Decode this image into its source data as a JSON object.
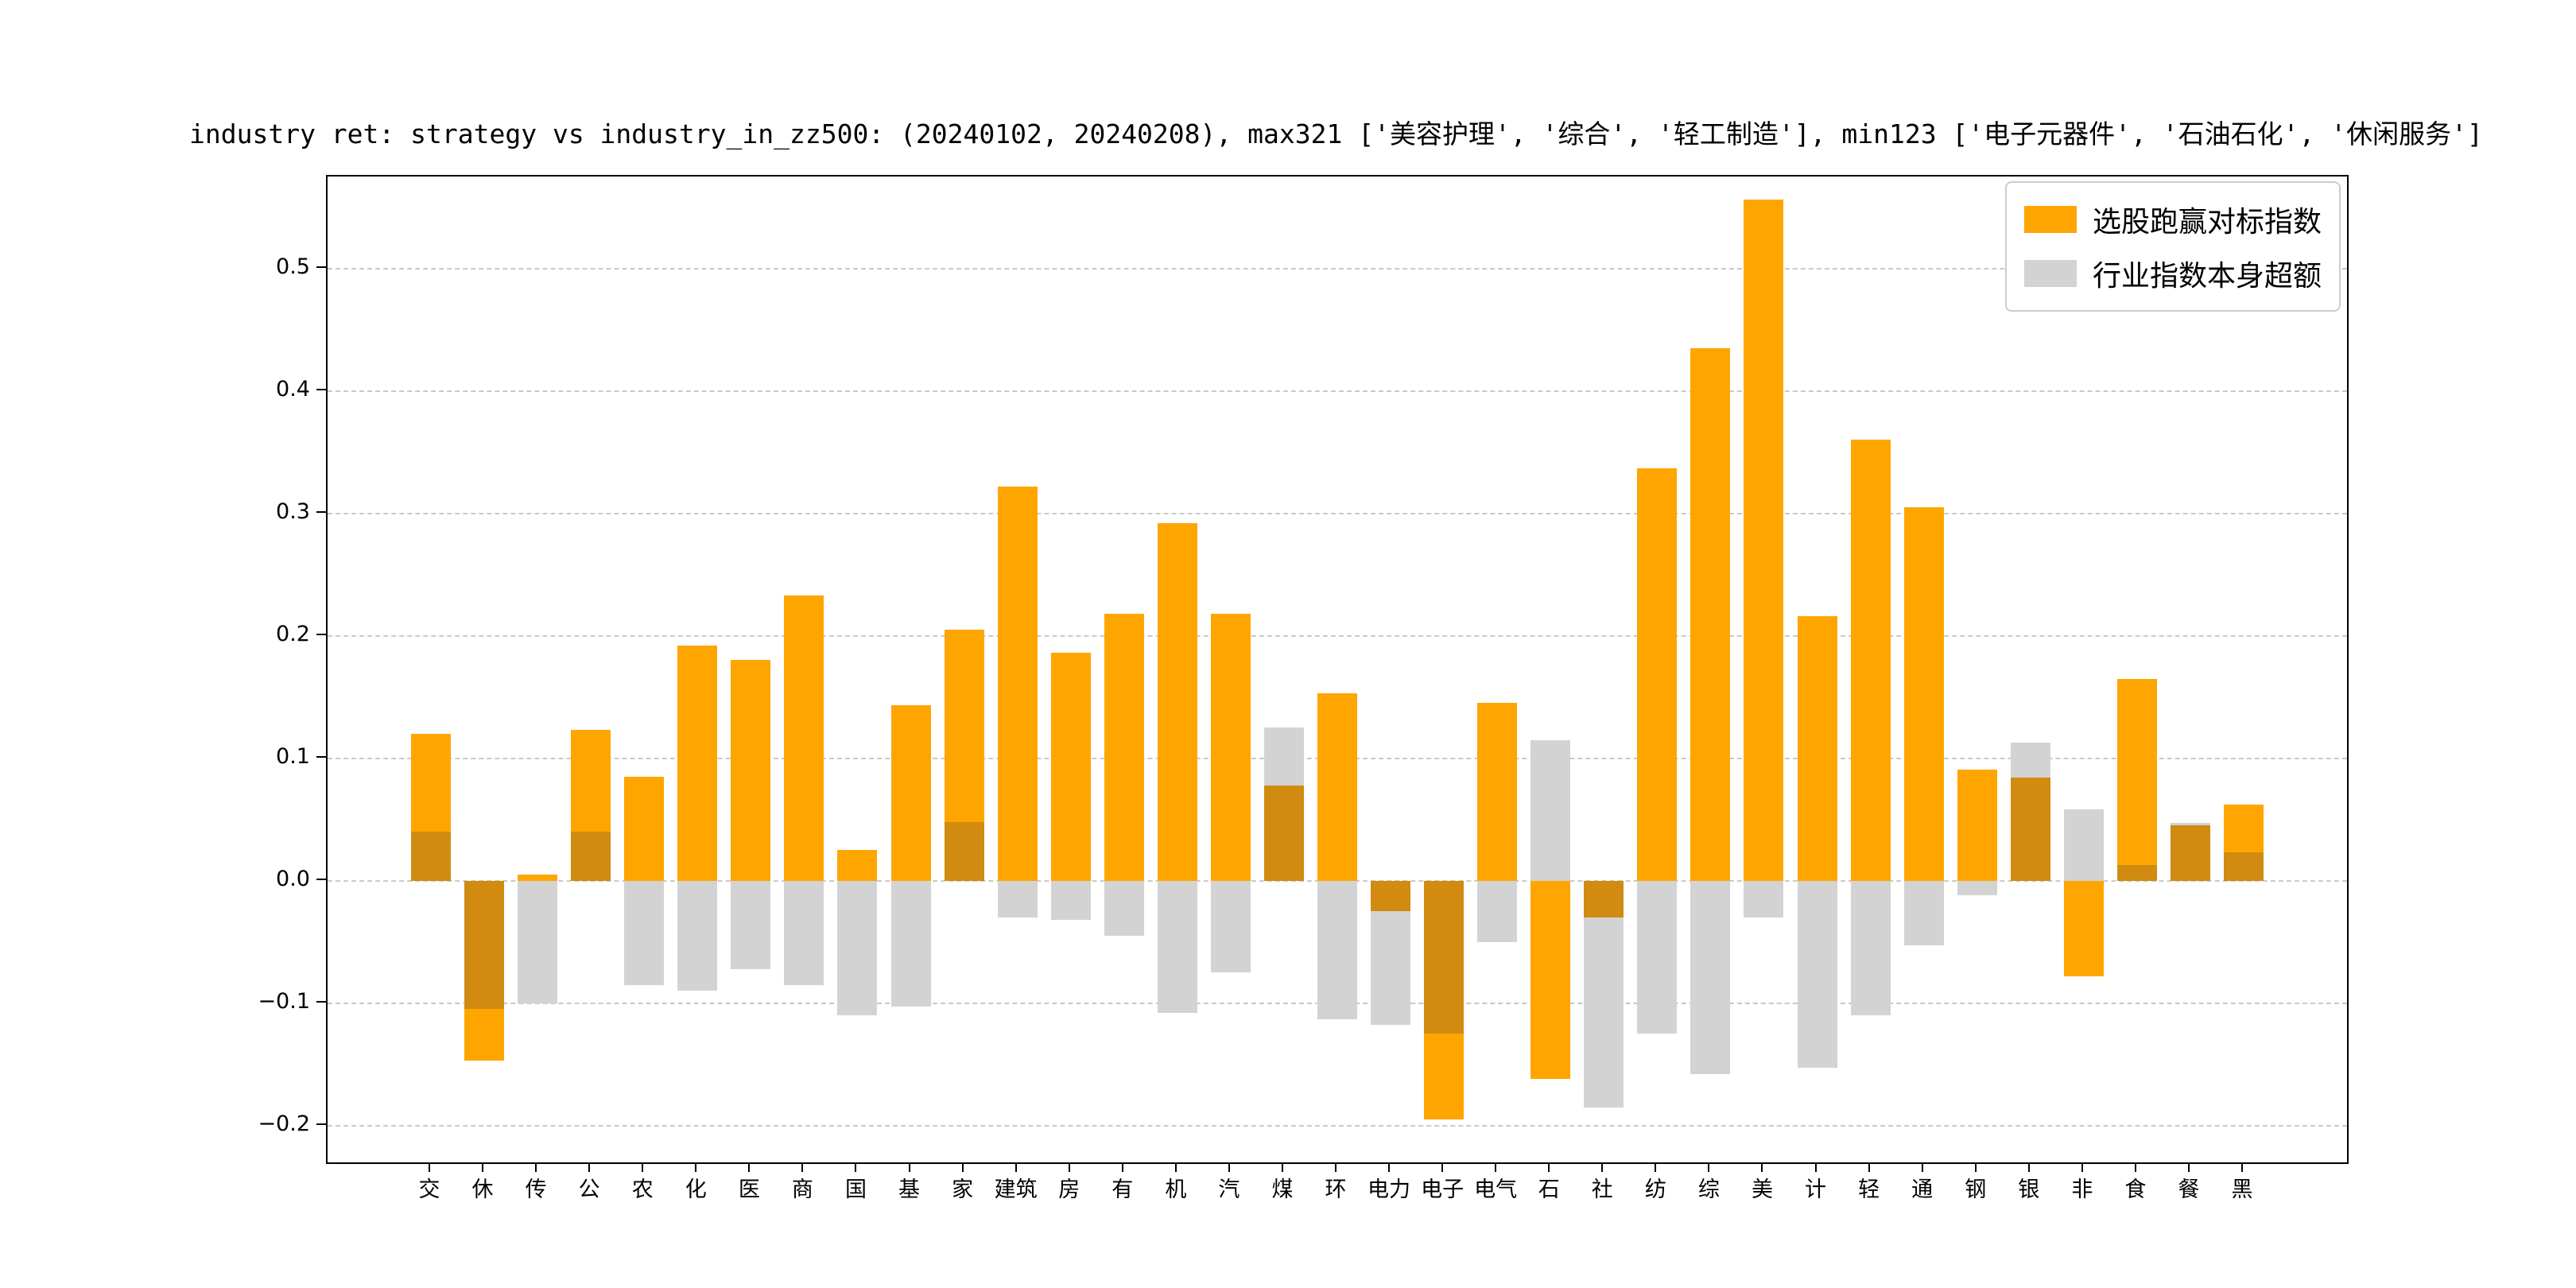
{
  "title": "industry ret: strategy vs industry_in_zz500: (20240102, 20240208), max321 ['美容护理', '综合', '轻工制造'], min123 ['电子元器件', '石油石化', '休闲服务']",
  "legend": {
    "items": [
      {
        "label": "选股跑赢对标指数",
        "color": "#FFA500"
      },
      {
        "label": "行业指数本身超额",
        "color": "#D3D3D3"
      }
    ]
  },
  "colors": {
    "strategy_bar": "#FFA500",
    "industry_excess_bar": "#D3D3D3",
    "overlap": "#D08B10",
    "gridline": "#c9c9c9",
    "axis": "#000000"
  },
  "chart_data": {
    "type": "bar",
    "title": "industry ret: strategy vs industry_in_zz500: (20240102, 20240208), max321 ['美容护理', '综合', '轻工制造'], min123 ['电子元器件', '石油石化', '休闲服务']",
    "categories": [
      "交",
      "休",
      "传",
      "公",
      "农",
      "化",
      "医",
      "商",
      "国",
      "基",
      "家",
      "建筑",
      "房",
      "有",
      "机",
      "汽",
      "煤",
      "环",
      "电力",
      "电子",
      "电气",
      "石",
      "社",
      "纺",
      "综",
      "美",
      "计",
      "轻",
      "通",
      "钢",
      "银",
      "非",
      "食",
      "餐",
      "黑"
    ],
    "series": [
      {
        "name": "选股跑赢对标指数",
        "color": "#FFA500",
        "values": [
          0.12,
          -0.147,
          0.005,
          0.123,
          0.085,
          0.192,
          0.18,
          0.233,
          0.025,
          0.143,
          0.205,
          0.322,
          0.186,
          0.218,
          0.292,
          0.218,
          0.078,
          0.153,
          -0.025,
          -0.195,
          0.145,
          -0.162,
          -0.03,
          0.337,
          0.435,
          0.556,
          0.216,
          0.36,
          0.305,
          0.091,
          0.084,
          -0.078,
          0.165,
          0.045,
          0.062
        ]
      },
      {
        "name": "行业指数本身超额",
        "color": "#D3D3D3",
        "values": [
          0.04,
          -0.105,
          -0.1,
          0.04,
          -0.085,
          -0.09,
          -0.072,
          -0.085,
          -0.11,
          -0.103,
          0.048,
          -0.03,
          -0.032,
          -0.045,
          -0.108,
          -0.075,
          0.125,
          -0.113,
          -0.118,
          -0.125,
          -0.05,
          0.115,
          -0.185,
          -0.125,
          -0.158,
          -0.03,
          -0.153,
          -0.11,
          -0.053,
          -0.012,
          0.113,
          0.058,
          0.013,
          0.047,
          0.023
        ]
      }
    ],
    "xlabel": "",
    "ylabel": "",
    "ylim": [
      -0.23,
      0.575
    ],
    "yticks": [
      -0.2,
      -0.1,
      0.0,
      0.1,
      0.2,
      0.3,
      0.4,
      0.5
    ],
    "ytick_labels": [
      "−0.2",
      "−0.1",
      "0.0",
      "0.1",
      "0.2",
      "0.3",
      "0.4",
      "0.5"
    ],
    "grid": "horizontal dashed",
    "legend_position": "upper right"
  }
}
